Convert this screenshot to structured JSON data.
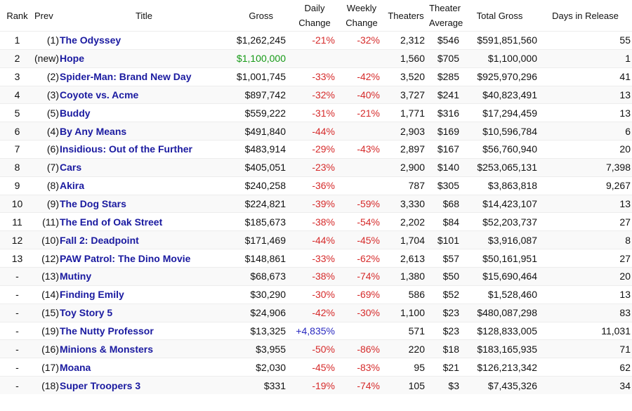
{
  "headers": {
    "rank": "Rank",
    "prev": "Prev",
    "title": "Title",
    "gross": "Gross",
    "daily_1": "Daily",
    "daily_2": "Change",
    "weekly_1": "Weekly",
    "weekly_2": "Change",
    "theaters": "Theaters",
    "avg_1": "Theater",
    "avg_2": "Average",
    "total": "Total Gross",
    "days": "Days in Release"
  },
  "colors": {
    "title_link": "#1a1aa0",
    "negative": "#d62b2b",
    "positive": "#2a2ac0",
    "new_entry_gross": "#169a16"
  },
  "rows": [
    {
      "rank": "1",
      "prev": "(1)",
      "title": "The Odyssey",
      "gross": "$1,262,245",
      "daily": "-21%",
      "weekly": "-32%",
      "theaters": "2,312",
      "avg": "$546",
      "total": "$591,851,560",
      "days": "55"
    },
    {
      "rank": "2",
      "prev": "(new)",
      "title": "Hope",
      "gross": "$1,100,000",
      "daily": "",
      "weekly": "",
      "theaters": "1,560",
      "avg": "$705",
      "total": "$1,100,000",
      "days": "1"
    },
    {
      "rank": "3",
      "prev": "(2)",
      "title": "Spider-Man: Brand New Day",
      "gross": "$1,001,745",
      "daily": "-33%",
      "weekly": "-42%",
      "theaters": "3,520",
      "avg": "$285",
      "total": "$925,970,296",
      "days": "41"
    },
    {
      "rank": "4",
      "prev": "(3)",
      "title": "Coyote vs. Acme",
      "gross": "$897,742",
      "daily": "-32%",
      "weekly": "-40%",
      "theaters": "3,727",
      "avg": "$241",
      "total": "$40,823,491",
      "days": "13"
    },
    {
      "rank": "5",
      "prev": "(5)",
      "title": "Buddy",
      "gross": "$559,222",
      "daily": "-31%",
      "weekly": "-21%",
      "theaters": "1,771",
      "avg": "$316",
      "total": "$17,294,459",
      "days": "13"
    },
    {
      "rank": "6",
      "prev": "(4)",
      "title": "By Any Means",
      "gross": "$491,840",
      "daily": "-44%",
      "weekly": "",
      "theaters": "2,903",
      "avg": "$169",
      "total": "$10,596,784",
      "days": "6"
    },
    {
      "rank": "7",
      "prev": "(6)",
      "title": "Insidious: Out of the Further",
      "gross": "$483,914",
      "daily": "-29%",
      "weekly": "-43%",
      "theaters": "2,897",
      "avg": "$167",
      "total": "$56,760,940",
      "days": "20"
    },
    {
      "rank": "8",
      "prev": "(7)",
      "title": "Cars",
      "gross": "$405,051",
      "daily": "-23%",
      "weekly": "",
      "theaters": "2,900",
      "avg": "$140",
      "total": "$253,065,131",
      "days": "7,398"
    },
    {
      "rank": "9",
      "prev": "(8)",
      "title": "Akira",
      "gross": "$240,258",
      "daily": "-36%",
      "weekly": "",
      "theaters": "787",
      "avg": "$305",
      "total": "$3,863,818",
      "days": "9,267"
    },
    {
      "rank": "10",
      "prev": "(9)",
      "title": "The Dog Stars",
      "gross": "$224,821",
      "daily": "-39%",
      "weekly": "-59%",
      "theaters": "3,330",
      "avg": "$68",
      "total": "$14,423,107",
      "days": "13"
    },
    {
      "rank": "11",
      "prev": "(11)",
      "title": "The End of Oak Street",
      "gross": "$185,673",
      "daily": "-38%",
      "weekly": "-54%",
      "theaters": "2,202",
      "avg": "$84",
      "total": "$52,203,737",
      "days": "27"
    },
    {
      "rank": "12",
      "prev": "(10)",
      "title": "Fall 2: Deadpoint",
      "gross": "$171,469",
      "daily": "-44%",
      "weekly": "-45%",
      "theaters": "1,704",
      "avg": "$101",
      "total": "$3,916,087",
      "days": "8"
    },
    {
      "rank": "13",
      "prev": "(12)",
      "title": "PAW Patrol: The Dino Movie",
      "gross": "$148,861",
      "daily": "-33%",
      "weekly": "-62%",
      "theaters": "2,613",
      "avg": "$57",
      "total": "$50,161,951",
      "days": "27"
    },
    {
      "rank": "-",
      "prev": "(13)",
      "title": "Mutiny",
      "gross": "$68,673",
      "daily": "-38%",
      "weekly": "-74%",
      "theaters": "1,380",
      "avg": "$50",
      "total": "$15,690,464",
      "days": "20"
    },
    {
      "rank": "-",
      "prev": "(14)",
      "title": "Finding Emily",
      "gross": "$30,290",
      "daily": "-30%",
      "weekly": "-69%",
      "theaters": "586",
      "avg": "$52",
      "total": "$1,528,460",
      "days": "13"
    },
    {
      "rank": "-",
      "prev": "(15)",
      "title": "Toy Story 5",
      "gross": "$24,906",
      "daily": "-42%",
      "weekly": "-30%",
      "theaters": "1,100",
      "avg": "$23",
      "total": "$480,087,298",
      "days": "83"
    },
    {
      "rank": "-",
      "prev": "(19)",
      "title": "The Nutty Professor",
      "gross": "$13,325",
      "daily": "+4,835%",
      "weekly": "",
      "theaters": "571",
      "avg": "$23",
      "total": "$128,833,005",
      "days": "11,031"
    },
    {
      "rank": "-",
      "prev": "(16)",
      "title": "Minions & Monsters",
      "gross": "$3,955",
      "daily": "-50%",
      "weekly": "-86%",
      "theaters": "220",
      "avg": "$18",
      "total": "$183,165,935",
      "days": "71"
    },
    {
      "rank": "-",
      "prev": "(17)",
      "title": "Moana",
      "gross": "$2,030",
      "daily": "-45%",
      "weekly": "-83%",
      "theaters": "95",
      "avg": "$21",
      "total": "$126,213,342",
      "days": "62"
    },
    {
      "rank": "-",
      "prev": "(18)",
      "title": "Super Troopers 3",
      "gross": "$331",
      "daily": "-19%",
      "weekly": "-74%",
      "theaters": "105",
      "avg": "$3",
      "total": "$7,435,326",
      "days": "34"
    }
  ]
}
